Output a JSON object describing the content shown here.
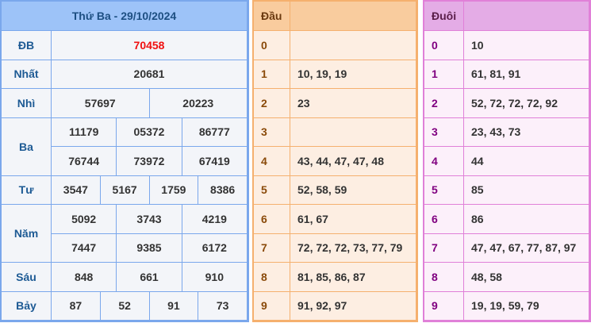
{
  "left": {
    "title": "Thứ Ba - 29/10/2024",
    "rows": [
      {
        "label": "ĐB",
        "values": [
          "70458"
        ]
      },
      {
        "label": "Nhất",
        "values": [
          "20681"
        ]
      },
      {
        "label": "Nhì",
        "values": [
          "57697",
          "20223"
        ]
      },
      {
        "label": "Ba",
        "values": [
          "11179",
          "05372",
          "86777",
          "76744",
          "73972",
          "67419"
        ]
      },
      {
        "label": "Tư",
        "values": [
          "3547",
          "5167",
          "1759",
          "8386"
        ]
      },
      {
        "label": "Năm",
        "values": [
          "5092",
          "3743",
          "4219",
          "7447",
          "9385",
          "6172"
        ]
      },
      {
        "label": "Sáu",
        "values": [
          "848",
          "661",
          "910"
        ]
      },
      {
        "label": "Bảy",
        "values": [
          "87",
          "52",
          "91",
          "73"
        ]
      }
    ],
    "highlight_color": "#f01010"
  },
  "dau": {
    "header": "Đầu",
    "rows": [
      {
        "k": "0",
        "v": ""
      },
      {
        "k": "1",
        "v": "10, 19, 19"
      },
      {
        "k": "2",
        "v": "23"
      },
      {
        "k": "3",
        "v": ""
      },
      {
        "k": "4",
        "v": "43, 44, 47, 47, 48"
      },
      {
        "k": "5",
        "v": "52, 58, 59"
      },
      {
        "k": "6",
        "v": "61, 67"
      },
      {
        "k": "7",
        "v": "72, 72, 72, 73, 77, 79"
      },
      {
        "k": "8",
        "v": "81, 85, 86, 87"
      },
      {
        "k": "9",
        "v": "91, 92, 97"
      }
    ]
  },
  "duoi": {
    "header": "Đuôi",
    "rows": [
      {
        "k": "0",
        "v": "10"
      },
      {
        "k": "1",
        "v": "61, 81, 91"
      },
      {
        "k": "2",
        "v": "52, 72, 72, 72, 92"
      },
      {
        "k": "3",
        "v": "23, 43, 73"
      },
      {
        "k": "4",
        "v": "44"
      },
      {
        "k": "5",
        "v": "85"
      },
      {
        "k": "6",
        "v": "86"
      },
      {
        "k": "7",
        "v": "47, 47, 67, 77, 87, 97"
      },
      {
        "k": "8",
        "v": "48, 58"
      },
      {
        "k": "9",
        "v": "19, 19, 59, 79"
      }
    ]
  }
}
